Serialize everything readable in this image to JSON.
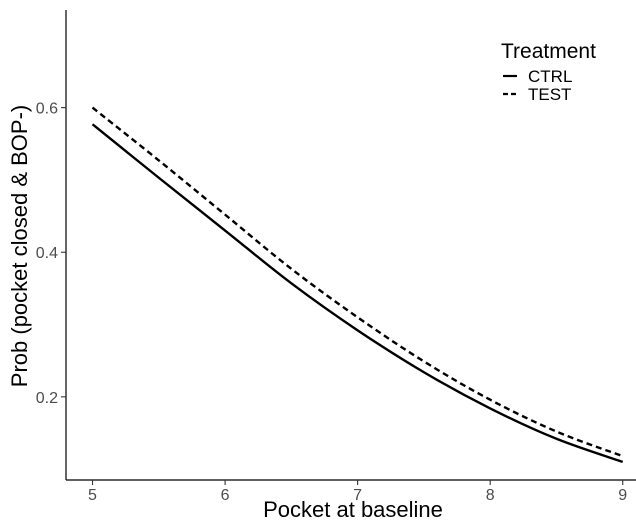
{
  "chart_data": {
    "type": "line",
    "title": "",
    "xlabel": "Pocket at baseline",
    "ylabel": "Prob (pocket closed & BOP-)",
    "xlim": [
      4.8,
      9.1
    ],
    "ylim": [
      0.085,
      0.735
    ],
    "xticks": [
      5,
      6,
      7,
      8,
      9
    ],
    "xtick_labels": [
      "5",
      "6",
      "7",
      "8",
      "9"
    ],
    "yticks": [
      0.2,
      0.4,
      0.6
    ],
    "ytick_labels": [
      "0.2",
      "0.4",
      "0.6"
    ],
    "grid": false,
    "legend": {
      "title": "Treatment",
      "position": "top-right"
    },
    "x": [
      5,
      5.5,
      6,
      6.5,
      7,
      7.5,
      8,
      8.5,
      9
    ],
    "series": [
      {
        "name": "CTRL",
        "line_style": "solid",
        "color": "#000000",
        "values": [
          0.577,
          0.503,
          0.43,
          0.357,
          0.292,
          0.234,
          0.184,
          0.142,
          0.11
        ]
      },
      {
        "name": "TEST",
        "line_style": "dashed",
        "color": "#000000",
        "values": [
          0.6,
          0.527,
          0.452,
          0.377,
          0.31,
          0.249,
          0.196,
          0.152,
          0.118
        ]
      }
    ]
  }
}
